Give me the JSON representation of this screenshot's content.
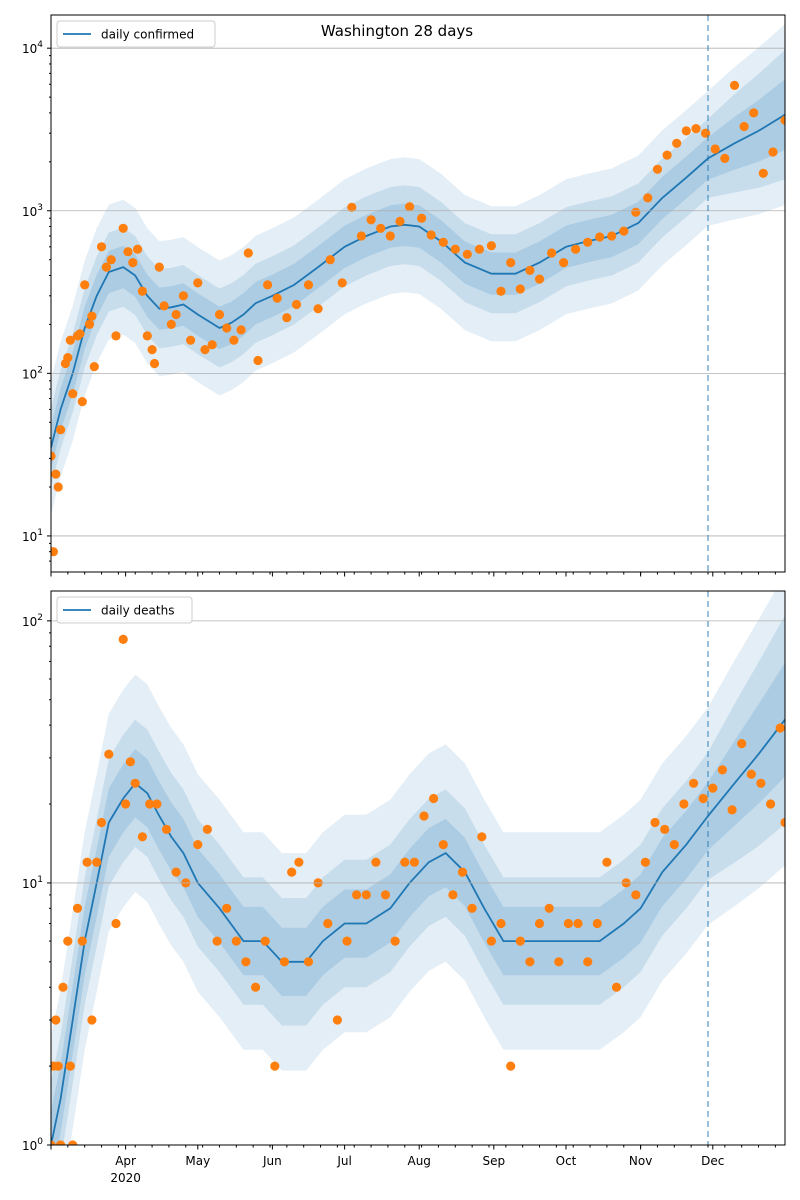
{
  "figure": {
    "title": "Washington 28 days"
  },
  "chart_data": [
    {
      "type": "line",
      "legend": [
        "daily confirmed"
      ],
      "legend_position": "top-left",
      "yscale": "log",
      "ylim": [
        6,
        16000
      ],
      "ytick_values": [
        10,
        100,
        1000,
        10000
      ],
      "ytick_labels": [
        [
          "10",
          "1"
        ],
        [
          "10",
          "2"
        ],
        [
          "10",
          "3"
        ],
        [
          "10",
          "4"
        ]
      ],
      "grid": "y",
      "xlim": [
        "2020-03-01",
        "2020-12-31"
      ],
      "xtick_labels": [],
      "forecast_start": "2020-11-29",
      "series": [
        {
          "name": "daily confirmed",
          "kind": "model-median",
          "color": "#1f77b4",
          "x": [
            "2020-03-01",
            "2020-03-05",
            "2020-03-10",
            "2020-03-15",
            "2020-03-20",
            "2020-03-25",
            "2020-03-31",
            "2020-04-05",
            "2020-04-10",
            "2020-04-15",
            "2020-04-20",
            "2020-04-25",
            "2020-05-01",
            "2020-05-10",
            "2020-05-15",
            "2020-05-20",
            "2020-05-25",
            "2020-06-01",
            "2020-06-10",
            "2020-06-20",
            "2020-07-01",
            "2020-07-10",
            "2020-07-20",
            "2020-07-26",
            "2020-08-01",
            "2020-08-10",
            "2020-08-20",
            "2020-08-31",
            "2020-09-10",
            "2020-09-20",
            "2020-10-01",
            "2020-10-10",
            "2020-10-20",
            "2020-10-31",
            "2020-11-10",
            "2020-11-20",
            "2020-11-29",
            "2020-12-10",
            "2020-12-20",
            "2020-12-31"
          ],
          "y": [
            35,
            60,
            100,
            190,
            300,
            420,
            450,
            400,
            300,
            250,
            255,
            265,
            230,
            190,
            205,
            230,
            270,
            300,
            350,
            450,
            600,
            700,
            800,
            820,
            800,
            650,
            480,
            410,
            410,
            480,
            600,
            650,
            700,
            840,
            1200,
            1600,
            2100,
            2600,
            3100,
            3900
          ]
        },
        {
          "name": "daily confirmed (observed)",
          "kind": "observed",
          "color": "#ff7f0e",
          "x": [
            "2020-03-01",
            "2020-03-02",
            "2020-03-03",
            "2020-03-04",
            "2020-03-05",
            "2020-03-07",
            "2020-03-08",
            "2020-03-09",
            "2020-03-10",
            "2020-03-12",
            "2020-03-13",
            "2020-03-14",
            "2020-03-15",
            "2020-03-17",
            "2020-03-18",
            "2020-03-19",
            "2020-03-22",
            "2020-03-24",
            "2020-03-26",
            "2020-03-28",
            "2020-03-31",
            "2020-04-02",
            "2020-04-04",
            "2020-04-06",
            "2020-04-08",
            "2020-04-10",
            "2020-04-12",
            "2020-04-13",
            "2020-04-15",
            "2020-04-17",
            "2020-04-20",
            "2020-04-22",
            "2020-04-25",
            "2020-04-28",
            "2020-05-01",
            "2020-05-04",
            "2020-05-07",
            "2020-05-10",
            "2020-05-13",
            "2020-05-16",
            "2020-05-19",
            "2020-05-22",
            "2020-05-26",
            "2020-05-30",
            "2020-06-03",
            "2020-06-07",
            "2020-06-11",
            "2020-06-16",
            "2020-06-20",
            "2020-06-25",
            "2020-06-30",
            "2020-07-04",
            "2020-07-08",
            "2020-07-12",
            "2020-07-16",
            "2020-07-20",
            "2020-07-24",
            "2020-07-28",
            "2020-08-02",
            "2020-08-06",
            "2020-08-11",
            "2020-08-16",
            "2020-08-21",
            "2020-08-26",
            "2020-08-31",
            "2020-09-04",
            "2020-09-08",
            "2020-09-12",
            "2020-09-16",
            "2020-09-20",
            "2020-09-25",
            "2020-09-30",
            "2020-10-05",
            "2020-10-10",
            "2020-10-15",
            "2020-10-20",
            "2020-10-25",
            "2020-10-30",
            "2020-11-04",
            "2020-11-08",
            "2020-11-12",
            "2020-11-16",
            "2020-11-20",
            "2020-11-24",
            "2020-11-28",
            "2020-12-02",
            "2020-12-06",
            "2020-12-10",
            "2020-12-14",
            "2020-12-18",
            "2020-12-22",
            "2020-12-26",
            "2020-12-31"
          ],
          "y": [
            31,
            8,
            24,
            20,
            45,
            115,
            125,
            160,
            75,
            170,
            175,
            67,
            350,
            200,
            225,
            110,
            600,
            450,
            500,
            170,
            780,
            560,
            480,
            580,
            320,
            170,
            140,
            115,
            450,
            260,
            200,
            230,
            300,
            160,
            360,
            140,
            150,
            230,
            190,
            160,
            185,
            550,
            120,
            350,
            290,
            220,
            265,
            350,
            250,
            500,
            360,
            1050,
            700,
            880,
            780,
            700,
            860,
            1060,
            900,
            710,
            640,
            580,
            540,
            580,
            610,
            320,
            480,
            330,
            430,
            380,
            550,
            480,
            580,
            640,
            690,
            700,
            750,
            980,
            1200,
            1800,
            2200,
            2600,
            3100,
            3200,
            3000,
            2400,
            2100,
            5900,
            3300,
            4000,
            1700,
            2300,
            3600
          ]
        }
      ]
    },
    {
      "type": "line",
      "legend": [
        "daily deaths"
      ],
      "legend_position": "top-left",
      "yscale": "log",
      "ylim": [
        1,
        130
      ],
      "ytick_values": [
        1,
        10,
        100
      ],
      "ytick_labels": [
        [
          "10",
          "0"
        ],
        [
          "10",
          "1"
        ],
        [
          "10",
          "2"
        ]
      ],
      "grid": "y",
      "xlim": [
        "2020-03-01",
        "2020-12-31"
      ],
      "xtick_labels": [
        "Apr",
        "May",
        "Jun",
        "Jul",
        "Aug",
        "Sep",
        "Oct",
        "Nov",
        "Dec"
      ],
      "xtick_values": [
        "2020-04-01",
        "2020-05-01",
        "2020-06-01",
        "2020-07-01",
        "2020-08-01",
        "2020-09-01",
        "2020-10-01",
        "2020-11-01",
        "2020-12-01"
      ],
      "year_label": "2020",
      "forecast_start": "2020-11-29",
      "series": [
        {
          "name": "daily deaths",
          "kind": "model-median",
          "color": "#1f77b4",
          "x": [
            "2020-03-01",
            "2020-03-05",
            "2020-03-10",
            "2020-03-15",
            "2020-03-20",
            "2020-03-25",
            "2020-03-31",
            "2020-04-05",
            "2020-04-10",
            "2020-04-15",
            "2020-04-20",
            "2020-04-25",
            "2020-05-01",
            "2020-05-10",
            "2020-05-20",
            "2020-05-28",
            "2020-06-05",
            "2020-06-10",
            "2020-06-15",
            "2020-06-22",
            "2020-07-01",
            "2020-07-10",
            "2020-07-20",
            "2020-07-28",
            "2020-08-05",
            "2020-08-12",
            "2020-08-20",
            "2020-08-28",
            "2020-09-05",
            "2020-09-15",
            "2020-09-25",
            "2020-10-05",
            "2020-10-15",
            "2020-10-25",
            "2020-11-01",
            "2020-11-10",
            "2020-11-20",
            "2020-11-29",
            "2020-12-10",
            "2020-12-20",
            "2020-12-31"
          ],
          "y": [
            1,
            1.5,
            3,
            6,
            10,
            17,
            21,
            24,
            22,
            18,
            15,
            13,
            10,
            8,
            6,
            6,
            5,
            5,
            5,
            6,
            7,
            7,
            8,
            10,
            12,
            13,
            11,
            8,
            6,
            6,
            6,
            6,
            6,
            7,
            8,
            11,
            14,
            18,
            24,
            31,
            42
          ]
        },
        {
          "name": "daily deaths (observed)",
          "kind": "observed",
          "color": "#ff7f0e",
          "x": [
            "2020-03-01",
            "2020-03-02",
            "2020-03-03",
            "2020-03-04",
            "2020-03-05",
            "2020-03-06",
            "2020-03-08",
            "2020-03-09",
            "2020-03-10",
            "2020-03-12",
            "2020-03-14",
            "2020-03-16",
            "2020-03-18",
            "2020-03-20",
            "2020-03-22",
            "2020-03-25",
            "2020-03-28",
            "2020-03-31",
            "2020-04-01",
            "2020-04-03",
            "2020-04-05",
            "2020-04-08",
            "2020-04-11",
            "2020-04-14",
            "2020-04-18",
            "2020-04-22",
            "2020-04-26",
            "2020-05-01",
            "2020-05-05",
            "2020-05-09",
            "2020-05-13",
            "2020-05-17",
            "2020-05-21",
            "2020-05-25",
            "2020-05-29",
            "2020-06-02",
            "2020-06-06",
            "2020-06-09",
            "2020-06-12",
            "2020-06-16",
            "2020-06-20",
            "2020-06-24",
            "2020-06-28",
            "2020-07-02",
            "2020-07-06",
            "2020-07-10",
            "2020-07-14",
            "2020-07-18",
            "2020-07-22",
            "2020-07-26",
            "2020-07-30",
            "2020-08-03",
            "2020-08-07",
            "2020-08-11",
            "2020-08-15",
            "2020-08-19",
            "2020-08-23",
            "2020-08-27",
            "2020-08-31",
            "2020-09-04",
            "2020-09-08",
            "2020-09-12",
            "2020-09-16",
            "2020-09-20",
            "2020-09-24",
            "2020-09-28",
            "2020-10-02",
            "2020-10-06",
            "2020-10-10",
            "2020-10-14",
            "2020-10-18",
            "2020-10-22",
            "2020-10-26",
            "2020-10-30",
            "2020-11-03",
            "2020-11-07",
            "2020-11-11",
            "2020-11-15",
            "2020-11-19",
            "2020-11-23",
            "2020-11-27",
            "2020-12-01",
            "2020-12-05",
            "2020-12-09",
            "2020-12-13",
            "2020-12-17",
            "2020-12-21",
            "2020-12-25",
            "2020-12-29",
            "2020-12-31"
          ],
          "y": [
            1,
            2,
            3,
            2,
            1,
            4,
            6,
            2,
            1,
            8,
            6,
            12,
            3,
            12,
            17,
            31,
            7,
            85,
            20,
            29,
            24,
            15,
            20,
            20,
            16,
            11,
            10,
            14,
            16,
            6,
            8,
            6,
            5,
            4,
            6,
            2,
            5,
            11,
            12,
            5,
            10,
            7,
            3,
            6,
            9,
            9,
            12,
            9,
            6,
            12,
            12,
            18,
            21,
            14,
            9,
            11,
            8,
            15,
            6,
            7,
            2,
            6,
            5,
            7,
            8,
            5,
            7,
            7,
            5,
            7,
            12,
            4,
            10,
            9,
            12,
            17,
            16,
            14,
            20,
            24,
            21,
            23,
            27,
            19,
            34,
            26,
            24,
            20,
            39,
            17
          ]
        }
      ]
    }
  ]
}
